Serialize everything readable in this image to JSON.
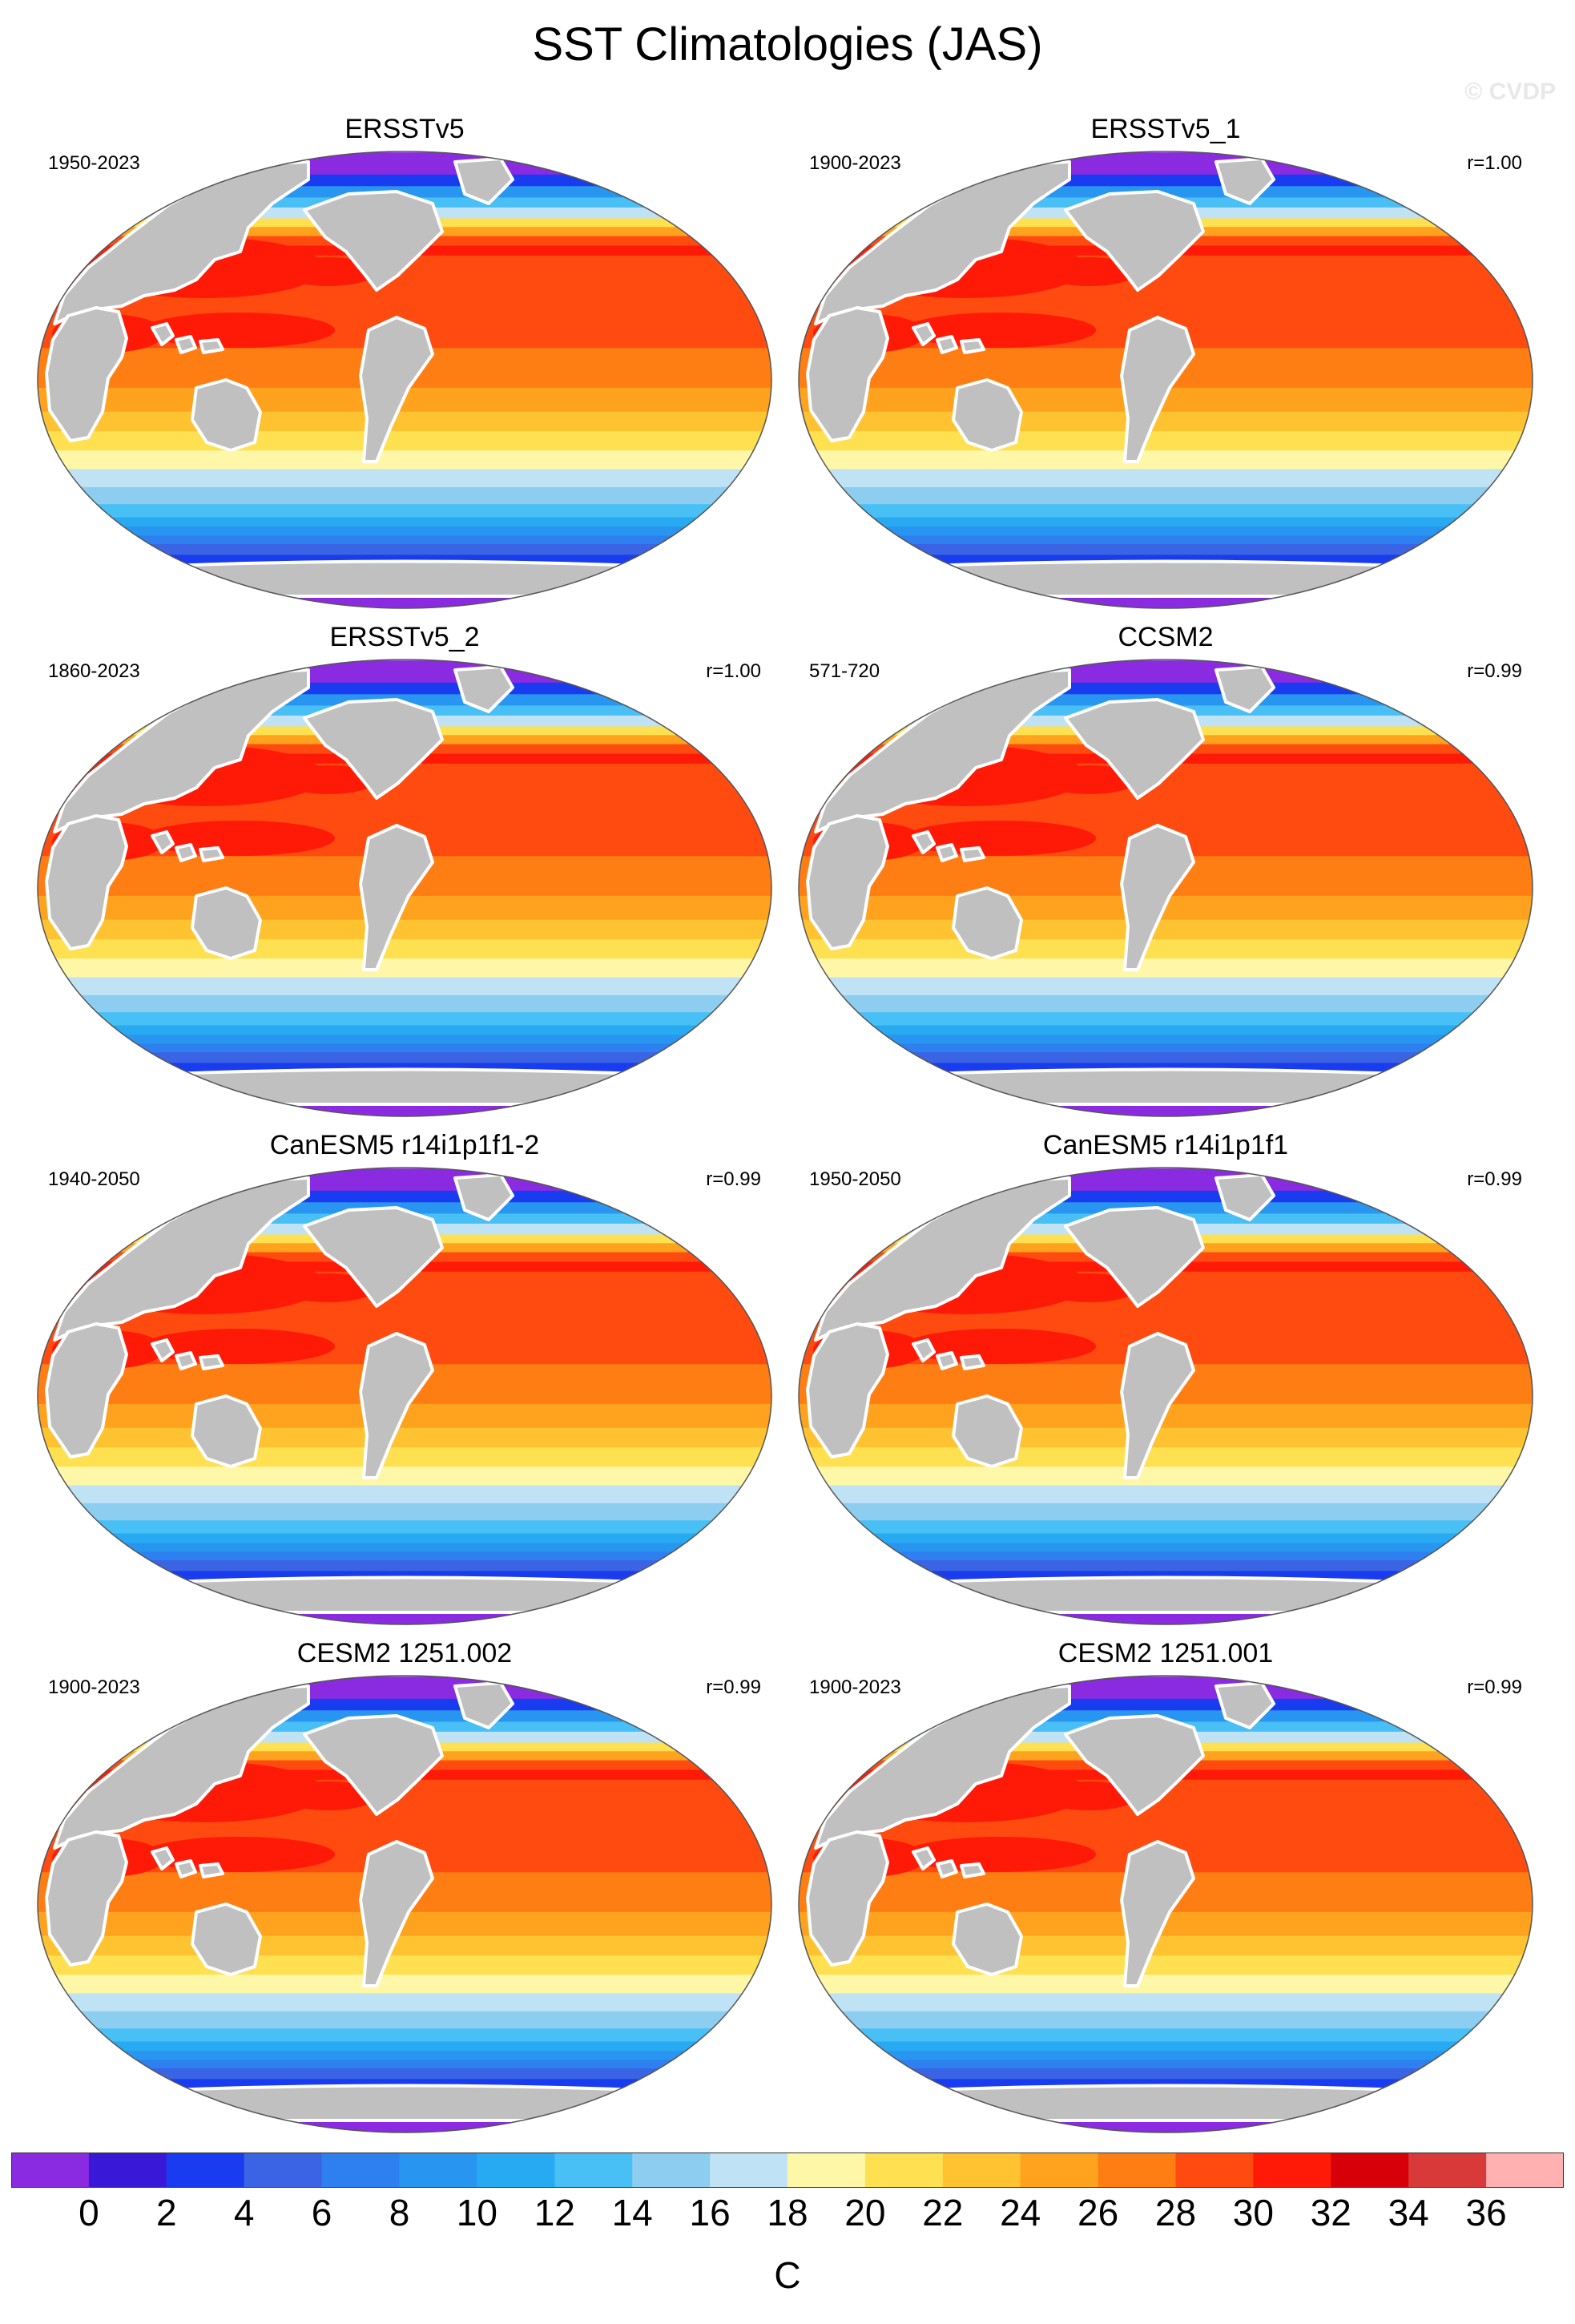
{
  "title": "SST Climatologies (JAS)",
  "watermark": "© CVDP",
  "units": "C",
  "colorbar": {
    "labels": [
      "0",
      "2",
      "4",
      "6",
      "8",
      "10",
      "12",
      "14",
      "16",
      "18",
      "20",
      "22",
      "24",
      "26",
      "28",
      "30",
      "32",
      "34",
      "36"
    ],
    "colors": [
      "#8a2be2",
      "#3a18d8",
      "#1a3cf0",
      "#3a64e4",
      "#2e7ff0",
      "#2896f0",
      "#27aaf2",
      "#48bff5",
      "#8ccdf0",
      "#bfe2f5",
      "#fff7a8",
      "#ffe050",
      "#ffc230",
      "#ffa21e",
      "#ff7e14",
      "#ff4a10",
      "#ff1a08",
      "#d80008",
      "#d83a3a",
      "#ffb0b0"
    ]
  },
  "panels": [
    {
      "title": "ERSSTv5",
      "years": "1950-2023",
      "r": ""
    },
    {
      "title": "ERSSTv5_1",
      "years": "1900-2023",
      "r": "r=1.00"
    },
    {
      "title": "ERSSTv5_2",
      "years": "1860-2023",
      "r": "r=1.00"
    },
    {
      "title": "CCSM2",
      "years": "571-720",
      "r": "r=0.99"
    },
    {
      "title": "CanESM5 r14i1p1f1-2",
      "years": "1940-2050",
      "r": "r=0.99"
    },
    {
      "title": "CanESM5 r14i1p1f1",
      "years": "1950-2050",
      "r": "r=0.99"
    },
    {
      "title": "CESM2 1251.002",
      "years": "1900-2023",
      "r": "r=0.99"
    },
    {
      "title": "CESM2 1251.001",
      "years": "1900-2023",
      "r": "r=0.99"
    }
  ],
  "map": {
    "land_color": "#c0c0c0",
    "coast_color": "#ffffff"
  }
}
